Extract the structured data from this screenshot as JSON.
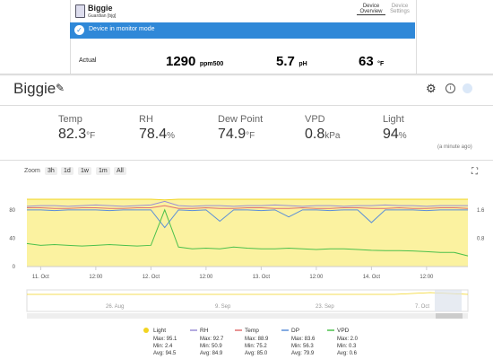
{
  "device_panel": {
    "name": "Biggie",
    "model": "Guardian [bjg]",
    "tabs": [
      "Device Overview",
      "Device Settings"
    ],
    "banner": "Device in monitor mode",
    "actual": {
      "label": "Actual",
      "readings": [
        {
          "value": "1290",
          "unit": "ppm500"
        },
        {
          "value": "5.7",
          "unit": "pH"
        },
        {
          "value": "63",
          "unit": "°F"
        }
      ]
    }
  },
  "header": {
    "title": "Biggie"
  },
  "stats": [
    {
      "label": "Temp",
      "value": "82.3",
      "unit": "°F"
    },
    {
      "label": "RH",
      "value": "78.4",
      "unit": "%"
    },
    {
      "label": "Dew Point",
      "value": "74.9",
      "unit": "°F"
    },
    {
      "label": "VPD",
      "value": "0.8",
      "unit": "kPa"
    },
    {
      "label": "Light",
      "value": "94",
      "unit": "%"
    }
  ],
  "updated": "(a minute ago)",
  "zoom": {
    "label": "Zoom",
    "buttons": [
      "3h",
      "1d",
      "1w",
      "1m",
      "All"
    ]
  },
  "navigator": {
    "labels": [
      "26. Aug",
      "9. Sep",
      "23. Sep",
      "7. Oct"
    ]
  },
  "chart_data": {
    "type": "line",
    "x": [
      -3,
      0,
      3,
      6,
      9,
      12,
      15,
      18,
      21,
      24,
      27,
      30,
      33,
      36,
      39,
      42,
      45,
      48,
      51,
      54,
      57,
      60,
      63,
      66,
      69,
      72,
      75,
      78,
      81,
      84,
      87,
      90,
      93
    ],
    "xlim": [
      -3,
      93
    ],
    "xticks": [
      {
        "value": 0,
        "label": "11. Oct"
      },
      {
        "value": 12,
        "label": "12:00"
      },
      {
        "value": 24,
        "label": "12. Oct"
      },
      {
        "value": 36,
        "label": "12:00"
      },
      {
        "value": 48,
        "label": "13. Oct"
      },
      {
        "value": 60,
        "label": "12:00"
      },
      {
        "value": 72,
        "label": "14. Oct"
      },
      {
        "value": 84,
        "label": "12:00"
      }
    ],
    "ylim": [
      0,
      95
    ],
    "yticks": [
      0,
      40,
      80
    ],
    "y2lim": [
      0,
      1.9
    ],
    "y2ticks": [
      0.8,
      1.6
    ],
    "series": [
      {
        "name": "Light",
        "color": "#f2d421",
        "area": true,
        "stats": [
          "Max: 95.1",
          "Min: 2.4",
          "Avg: 94.5"
        ],
        "values": [
          95,
          95,
          95,
          95,
          95,
          95,
          95,
          95,
          95,
          95,
          94,
          95,
          95,
          95,
          95,
          95,
          95,
          95,
          95,
          95,
          95,
          95,
          95,
          95,
          95,
          95,
          95,
          95,
          95,
          95,
          95,
          95,
          95
        ]
      },
      {
        "name": "RH",
        "color": "#9a8fd6",
        "stats": [
          "Max: 92.7",
          "Min: 50.9",
          "Avg: 84.9"
        ],
        "values": [
          85,
          86,
          86,
          85,
          86,
          87,
          86,
          85,
          86,
          87,
          92,
          86,
          85,
          86,
          86,
          85,
          86,
          86,
          87,
          86,
          85,
          86,
          86,
          85,
          86,
          86,
          87,
          86,
          86,
          85,
          86,
          86,
          86
        ]
      },
      {
        "name": "Temp",
        "color": "#e07070",
        "stats": [
          "Max: 88.9",
          "Min: 75.2",
          "Avg: 85.0"
        ],
        "values": [
          83,
          83,
          82,
          82,
          83,
          83,
          82,
          82,
          83,
          83,
          86,
          82,
          82,
          83,
          82,
          82,
          83,
          83,
          82,
          82,
          83,
          82,
          82,
          83,
          83,
          82,
          82,
          83,
          82,
          82,
          83,
          83,
          82
        ]
      },
      {
        "name": "DP",
        "color": "#5b8fd8",
        "stats": [
          "Max: 83.6",
          "Min: 56.3",
          "Avg: 79.9"
        ],
        "values": [
          80,
          80,
          79,
          80,
          80,
          80,
          79,
          80,
          80,
          80,
          55,
          80,
          79,
          80,
          64,
          80,
          80,
          79,
          80,
          70,
          80,
          80,
          79,
          80,
          80,
          62,
          80,
          80,
          80,
          79,
          80,
          80,
          80
        ]
      },
      {
        "name": "VPD",
        "color": "#4cc04c",
        "axis": "y2",
        "stats": [
          "Max: 2.0",
          "Min: 0.3",
          "Avg: 0.6"
        ],
        "values": [
          0.65,
          0.6,
          0.62,
          0.6,
          0.58,
          0.6,
          0.62,
          0.6,
          0.58,
          0.6,
          1.6,
          0.55,
          0.5,
          0.52,
          0.5,
          0.55,
          0.52,
          0.5,
          0.5,
          0.52,
          0.5,
          0.48,
          0.5,
          0.5,
          0.48,
          0.46,
          0.45,
          0.45,
          0.44,
          0.42,
          0.4,
          0.4,
          0.3
        ]
      }
    ]
  }
}
